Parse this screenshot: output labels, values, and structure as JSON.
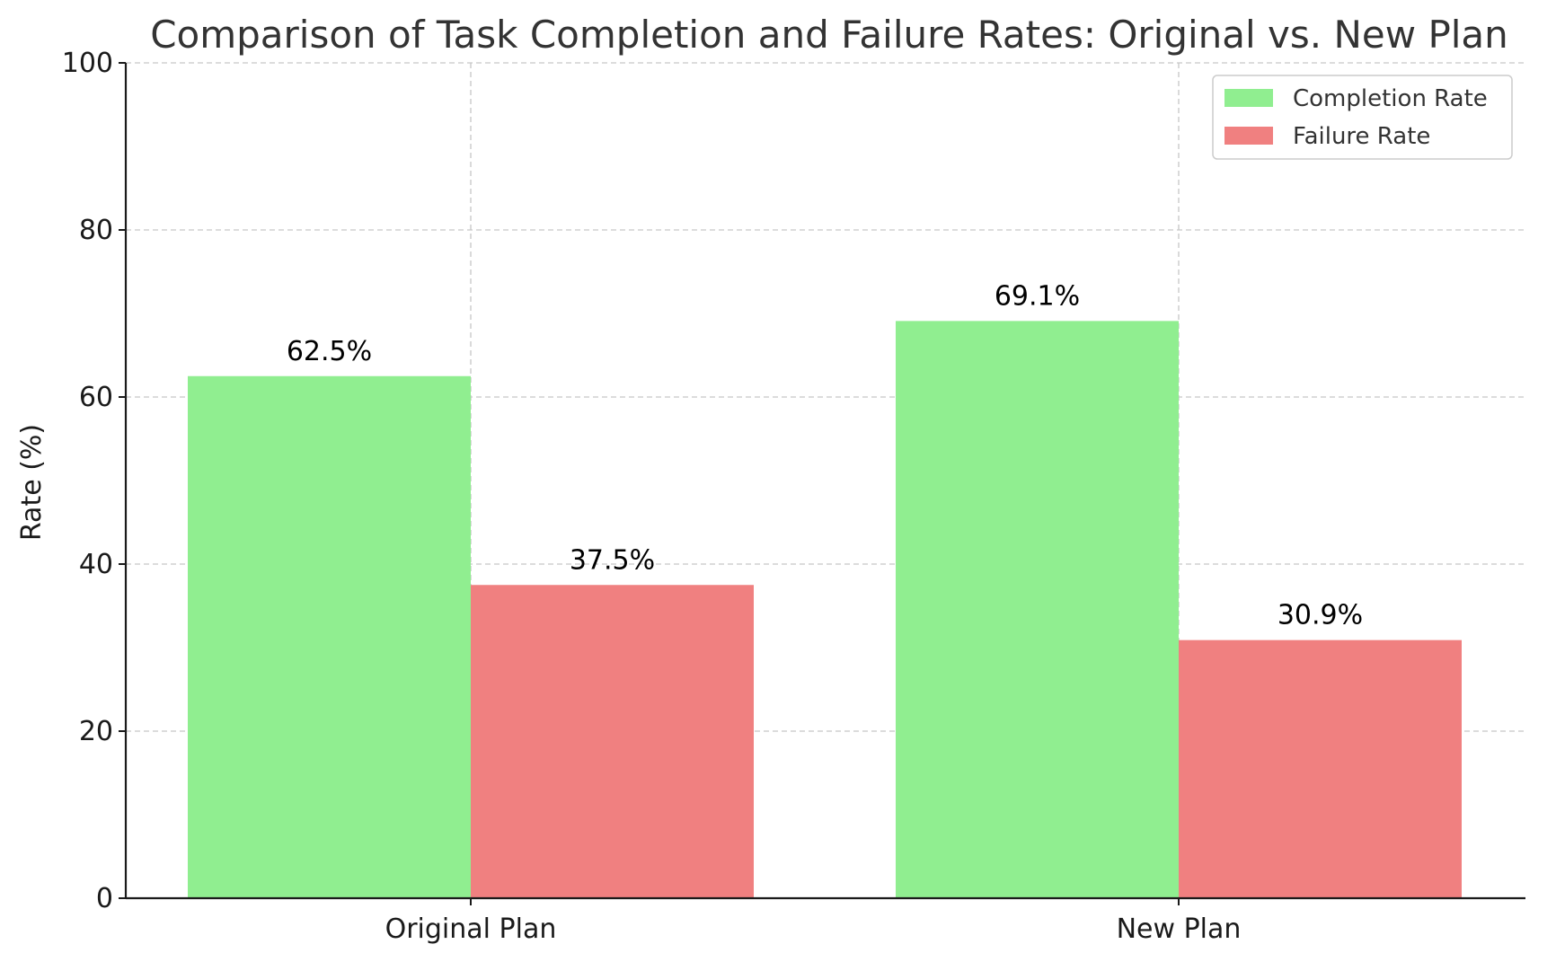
{
  "chart_data": {
    "type": "bar",
    "title": "Comparison of Task Completion and Failure Rates: Original vs. New Plan",
    "xlabel": "",
    "ylabel": "Rate (%)",
    "ylim": [
      0,
      100
    ],
    "yticks": [
      0,
      20,
      40,
      60,
      80,
      100
    ],
    "categories": [
      "Original Plan",
      "New Plan"
    ],
    "series": [
      {
        "name": "Completion Rate",
        "values": [
          62.5,
          69.1
        ],
        "labels": [
          "62.5%",
          "69.1%"
        ],
        "color": "#90ee90"
      },
      {
        "name": "Failure Rate",
        "values": [
          37.5,
          30.9
        ],
        "labels": [
          "37.5%",
          "30.9%"
        ],
        "color": "#f08080"
      }
    ],
    "grid": true,
    "legend_position": "top-right"
  }
}
